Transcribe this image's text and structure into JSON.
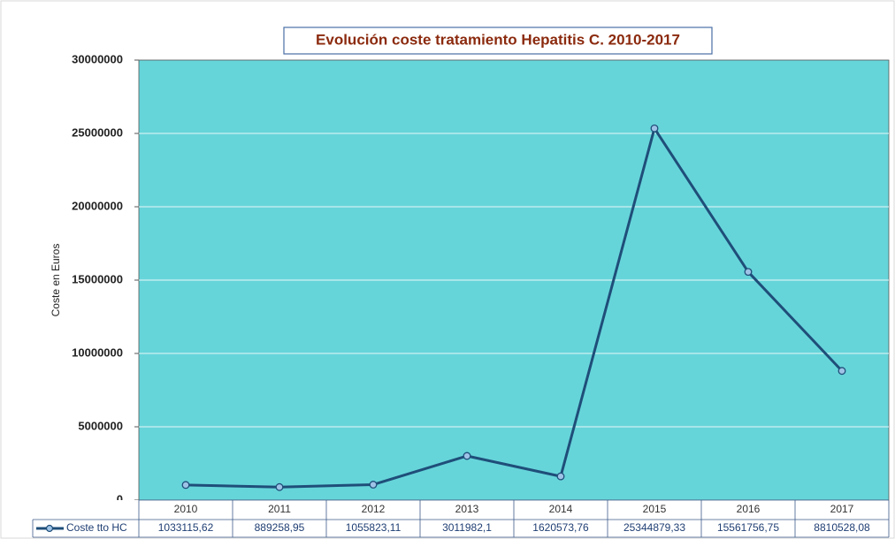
{
  "chart_data": {
    "type": "line",
    "title": "Evolución coste tratamiento Hepatitis C. 2010-2017",
    "y_label": "Coste en Euros",
    "categories": [
      "2010",
      "2011",
      "2012",
      "2013",
      "2014",
      "2015",
      "2016",
      "2017"
    ],
    "series": [
      {
        "name": "Coste tto HC",
        "color": "#1f4e79",
        "values": [
          1033115.62,
          889258.95,
          1055823.11,
          3011982.1,
          1620573.76,
          25344879.33,
          15561756.75,
          8810528.08
        ],
        "value_labels": [
          "1033115,62",
          "889258,95",
          "1055823,11",
          "3011982,1",
          "1620573,76",
          "25344879,33",
          "15561756,75",
          "8810528,08"
        ]
      }
    ],
    "ylim": [
      0,
      30000000
    ],
    "yticks": [
      0,
      5000000,
      10000000,
      15000000,
      20000000,
      25000000,
      30000000
    ],
    "grid": true
  }
}
